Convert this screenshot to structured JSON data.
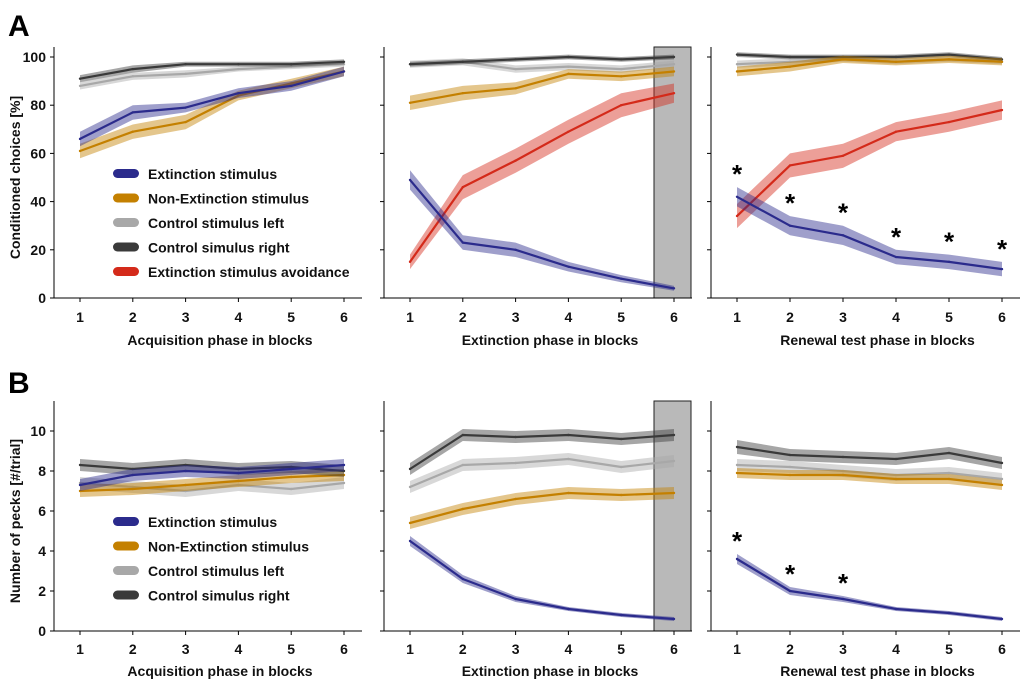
{
  "colors": {
    "Extinction stimulus": "#2b2b8c",
    "Non-Extinction stimulus": "#c48000",
    "Control stimulus left": "#a8a8a8",
    "Control simulus right": "#3a3a3a",
    "Extinction stimulus avoidance": "#d42a1a"
  },
  "chart_data": [
    {
      "type": "line",
      "panel": "A",
      "ylabel": "Conditioned choices [%]",
      "ylim": [
        0,
        100
      ],
      "yticks": [
        0,
        20,
        40,
        60,
        80,
        100
      ],
      "x": [
        1,
        2,
        3,
        4,
        5,
        6
      ],
      "legend": {
        "placement": "lower-left of first subplot",
        "entries": [
          "Extinction stimulus",
          "Non-Extinction stimulus",
          "Control stimulus left",
          "Control simulus right",
          "Extinction stimulus avoidance"
        ]
      },
      "subplots": [
        {
          "xlabel": "Acquisition phase in blocks",
          "series": [
            {
              "name": "Control stimulus left",
              "values": [
                88,
                92,
                93,
                95,
                96,
                97
              ],
              "err": [
                1.5,
                1.5,
                1.5,
                1,
                1,
                1
              ]
            },
            {
              "name": "Control simulus right",
              "values": [
                91,
                95,
                97,
                97,
                97,
                98
              ],
              "err": [
                1.5,
                1.5,
                1,
                1,
                1,
                1
              ]
            },
            {
              "name": "Non-Extinction stimulus",
              "values": [
                61,
                69,
                73,
                84,
                89,
                94
              ],
              "err": [
                3,
                3,
                3,
                2,
                2,
                2
              ]
            },
            {
              "name": "Extinction stimulus",
              "values": [
                66,
                77,
                79,
                85,
                88,
                94
              ],
              "err": [
                3,
                3,
                2,
                2,
                2,
                2
              ]
            }
          ]
        },
        {
          "xlabel": "Extinction phase in blocks",
          "shaded_block": 6,
          "series": [
            {
              "name": "Control stimulus left",
              "values": [
                97,
                98,
                95,
                96,
                95,
                97
              ],
              "err": [
                1.5,
                1.5,
                1.5,
                1.5,
                1.5,
                1.5
              ]
            },
            {
              "name": "Control simulus right",
              "values": [
                97,
                98,
                99,
                100,
                99,
                100
              ],
              "err": [
                1,
                1,
                1,
                1,
                1,
                1
              ]
            },
            {
              "name": "Non-Extinction stimulus",
              "values": [
                81,
                85,
                87,
                93,
                92,
                94
              ],
              "err": [
                3,
                3,
                2.5,
                2,
                2,
                2
              ]
            },
            {
              "name": "Extinction stimulus avoidance",
              "values": [
                15,
                46,
                57,
                69,
                80,
                85
              ],
              "err": [
                3,
                5,
                5,
                5,
                5,
                4
              ]
            },
            {
              "name": "Extinction stimulus",
              "values": [
                49,
                23,
                20,
                13,
                8,
                4
              ],
              "err": [
                4,
                3,
                3,
                2,
                1.5,
                1
              ]
            }
          ]
        },
        {
          "xlabel": "Renewal test phase in blocks",
          "significance_blocks": [
            1,
            2,
            3,
            4,
            5,
            6
          ],
          "series": [
            {
              "name": "Control stimulus left",
              "values": [
                97,
                98,
                99,
                98,
                99,
                98
              ],
              "err": [
                1.5,
                1.5,
                1,
                1,
                1,
                1
              ]
            },
            {
              "name": "Control simulus right",
              "values": [
                101,
                100,
                100,
                100,
                101,
                99
              ],
              "err": [
                1,
                1,
                1,
                1,
                1,
                1
              ]
            },
            {
              "name": "Non-Extinction stimulus",
              "values": [
                94,
                96,
                99,
                98,
                99,
                98
              ],
              "err": [
                2,
                2,
                1.5,
                1.5,
                1.5,
                1.5
              ]
            },
            {
              "name": "Extinction stimulus avoidance",
              "values": [
                34,
                55,
                59,
                69,
                73,
                78
              ],
              "err": [
                5,
                5,
                5,
                4,
                4,
                4
              ]
            },
            {
              "name": "Extinction stimulus",
              "values": [
                42,
                30,
                26,
                17,
                15,
                12
              ],
              "err": [
                4,
                4,
                4,
                3,
                3,
                3
              ]
            }
          ]
        }
      ]
    },
    {
      "type": "line",
      "panel": "B",
      "ylabel": "Number of pecks [#/trial]",
      "ylim": [
        0,
        11
      ],
      "yticks": [
        0,
        2,
        4,
        6,
        8,
        10
      ],
      "x": [
        1,
        2,
        3,
        4,
        5,
        6
      ],
      "legend": {
        "placement": "lower-left of first subplot",
        "entries": [
          "Extinction stimulus",
          "Non-Extinction stimulus",
          "Control stimulus left",
          "Control simulus right"
        ]
      },
      "subplots": [
        {
          "xlabel": "Acquisition phase in blocks",
          "series": [
            {
              "name": "Control stimulus left",
              "values": [
                7.4,
                7.2,
                7.0,
                7.3,
                7.1,
                7.4
              ],
              "err": [
                0.3,
                0.3,
                0.3,
                0.3,
                0.3,
                0.3
              ]
            },
            {
              "name": "Non-Extinction stimulus",
              "values": [
                7.0,
                7.1,
                7.3,
                7.5,
                7.7,
                7.8
              ],
              "err": [
                0.3,
                0.3,
                0.3,
                0.3,
                0.3,
                0.3
              ]
            },
            {
              "name": "Control simulus right",
              "values": [
                8.3,
                8.1,
                8.3,
                8.1,
                8.2,
                8.0
              ],
              "err": [
                0.3,
                0.3,
                0.3,
                0.3,
                0.3,
                0.3
              ]
            },
            {
              "name": "Extinction stimulus",
              "values": [
                7.3,
                7.8,
                8.0,
                7.9,
                8.1,
                8.3
              ],
              "err": [
                0.3,
                0.3,
                0.3,
                0.3,
                0.3,
                0.3
              ]
            }
          ]
        },
        {
          "xlabel": "Extinction phase in blocks",
          "shaded_block": 6,
          "series": [
            {
              "name": "Control stimulus left",
              "values": [
                7.2,
                8.3,
                8.4,
                8.6,
                8.2,
                8.5
              ],
              "err": [
                0.3,
                0.3,
                0.3,
                0.3,
                0.3,
                0.3
              ]
            },
            {
              "name": "Control simulus right",
              "values": [
                8.1,
                9.8,
                9.7,
                9.8,
                9.6,
                9.8
              ],
              "err": [
                0.3,
                0.3,
                0.3,
                0.3,
                0.3,
                0.3
              ]
            },
            {
              "name": "Non-Extinction stimulus",
              "values": [
                5.4,
                6.1,
                6.6,
                6.9,
                6.8,
                6.9
              ],
              "err": [
                0.3,
                0.3,
                0.3,
                0.3,
                0.3,
                0.3
              ]
            },
            {
              "name": "Extinction stimulus",
              "values": [
                4.5,
                2.6,
                1.6,
                1.1,
                0.8,
                0.6
              ],
              "err": [
                0.25,
                0.2,
                0.15,
                0.1,
                0.1,
                0.1
              ]
            }
          ]
        },
        {
          "xlabel": "Renewal test phase in blocks",
          "significance_blocks": [
            1,
            2,
            3
          ],
          "series": [
            {
              "name": "Control stimulus left",
              "values": [
                8.3,
                8.2,
                8.0,
                7.8,
                7.9,
                7.6
              ],
              "err": [
                0.3,
                0.3,
                0.3,
                0.3,
                0.3,
                0.3
              ]
            },
            {
              "name": "Non-Extinction stimulus",
              "values": [
                7.9,
                7.8,
                7.8,
                7.6,
                7.6,
                7.3
              ],
              "err": [
                0.25,
                0.25,
                0.25,
                0.25,
                0.25,
                0.25
              ]
            },
            {
              "name": "Control simulus right",
              "values": [
                9.2,
                8.8,
                8.7,
                8.6,
                8.9,
                8.4
              ],
              "err": [
                0.35,
                0.3,
                0.3,
                0.3,
                0.3,
                0.3
              ]
            },
            {
              "name": "Extinction stimulus",
              "values": [
                3.6,
                2.0,
                1.6,
                1.1,
                0.9,
                0.6
              ],
              "err": [
                0.25,
                0.2,
                0.15,
                0.1,
                0.1,
                0.1
              ]
            }
          ]
        }
      ]
    }
  ],
  "significance_marker": "*"
}
